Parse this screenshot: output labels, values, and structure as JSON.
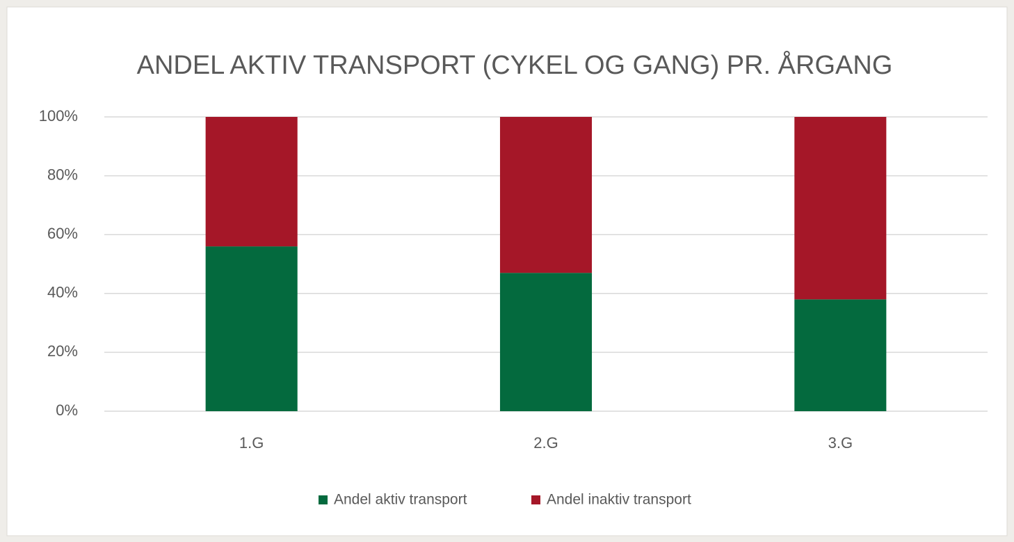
{
  "chart_data": {
    "type": "stacked_bar",
    "title": "ANDEL AKTIV TRANSPORT (CYKEL OG GANG) PR. ÅRGANG",
    "categories": [
      "1.G",
      "2.G",
      "3.G"
    ],
    "series": [
      {
        "name": "Andel aktiv transport",
        "color": "#046a3e",
        "values": [
          56,
          47,
          38
        ]
      },
      {
        "name": "Andel inaktiv transport",
        "color": "#a51728",
        "values": [
          44,
          53,
          62
        ]
      }
    ],
    "ylim": [
      0,
      100
    ],
    "yticks": [
      {
        "value": 0,
        "label": "0%"
      },
      {
        "value": 20,
        "label": "20%"
      },
      {
        "value": 40,
        "label": "40%"
      },
      {
        "value": 60,
        "label": "60%"
      },
      {
        "value": 80,
        "label": "80%"
      },
      {
        "value": 100,
        "label": "100%"
      }
    ],
    "grid": true,
    "legend": "bottom"
  }
}
